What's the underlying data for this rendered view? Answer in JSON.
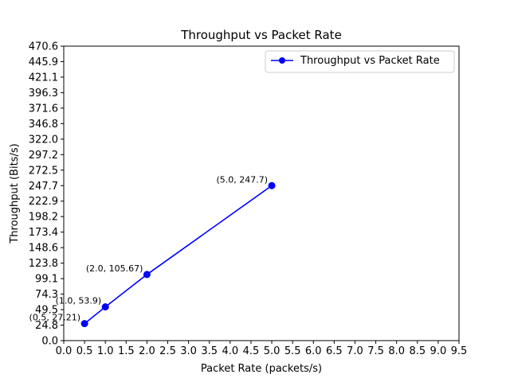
{
  "chart_data": {
    "type": "line",
    "title": "Throughput vs Packet Rate",
    "xlabel": "Packet Rate (packets/s)",
    "ylabel": "Throughput (Bits/s)",
    "xlim": [
      0.0,
      9.5
    ],
    "ylim": [
      0.0,
      470.6
    ],
    "x_ticks": [
      "0.0",
      "0.5",
      "1.0",
      "1.5",
      "2.0",
      "2.5",
      "3.0",
      "3.5",
      "4.0",
      "4.5",
      "5.0",
      "5.5",
      "6.0",
      "6.5",
      "7.0",
      "7.5",
      "8.0",
      "8.5",
      "9.0",
      "9.5"
    ],
    "y_ticks": [
      "0.0",
      "24.8",
      "49.5",
      "74.3",
      "99.1",
      "123.8",
      "148.6",
      "173.4",
      "198.2",
      "222.9",
      "247.7",
      "272.5",
      "297.2",
      "322.0",
      "346.8",
      "371.6",
      "396.3",
      "421.1",
      "445.9",
      "470.6"
    ],
    "grid": false,
    "legend_position": "top-right",
    "series": [
      {
        "name": "Throughput vs Packet Rate",
        "color": "#0000ff",
        "marker": "circle",
        "x": [
          0.5,
          1.0,
          2.0,
          5.0
        ],
        "y": [
          27.21,
          53.9,
          105.67,
          247.7
        ],
        "labels": [
          "(0.5, 27.21)",
          "(1.0, 53.9)",
          "(2.0, 105.67)",
          "(5.0, 247.7)"
        ]
      }
    ]
  }
}
